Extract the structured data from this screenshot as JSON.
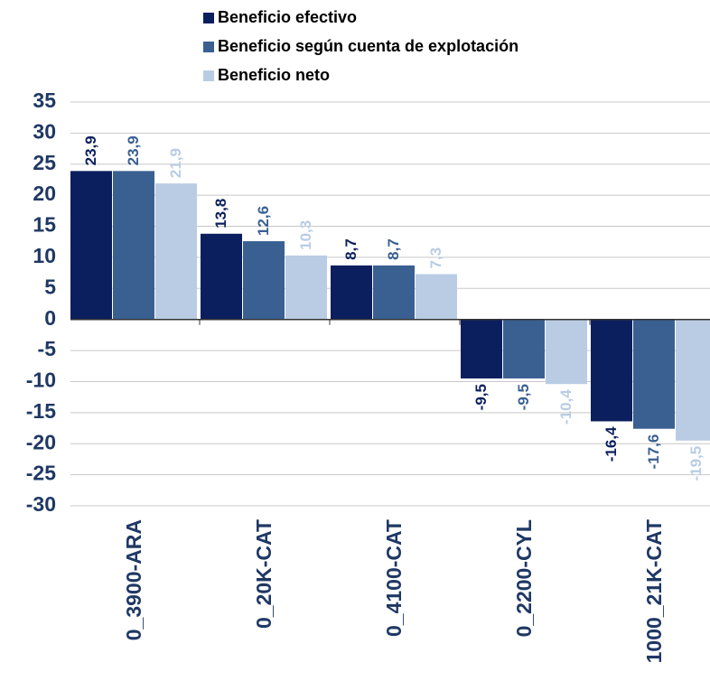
{
  "chart_data": {
    "type": "bar",
    "categories": [
      "0_3900-ARA",
      "0_20K-CAT",
      "0_4100-CAT",
      "0_2200-CYL",
      "1000_21K-CAT"
    ],
    "series": [
      {
        "name": "Beneficio efectivo",
        "color": "#0b1f5e",
        "values": [
          23.9,
          13.8,
          8.7,
          -9.5,
          -16.4
        ],
        "value_labels": [
          "23,9",
          "13,8",
          "8,7",
          "-9,5",
          "-16,4"
        ]
      },
      {
        "name": "Beneficio según cuenta de explotación",
        "color": "#3a6092",
        "values": [
          23.9,
          12.6,
          8.7,
          -9.5,
          -17.6
        ],
        "value_labels": [
          "23,9",
          "12,6",
          "8,7",
          "-9,5",
          "-17,6"
        ]
      },
      {
        "name": "Beneficio neto",
        "color": "#b9cce4",
        "values": [
          21.9,
          10.3,
          7.3,
          -10.4,
          -19.5
        ],
        "value_labels": [
          "21,9",
          "10,3",
          "7,3",
          "-10,4",
          "-19,5"
        ]
      }
    ],
    "ylim": [
      -30,
      35
    ],
    "yticks": [
      -30,
      -25,
      -20,
      -15,
      -10,
      -5,
      0,
      5,
      10,
      15,
      20,
      25,
      30,
      35
    ],
    "grid": true,
    "legend": "top"
  }
}
